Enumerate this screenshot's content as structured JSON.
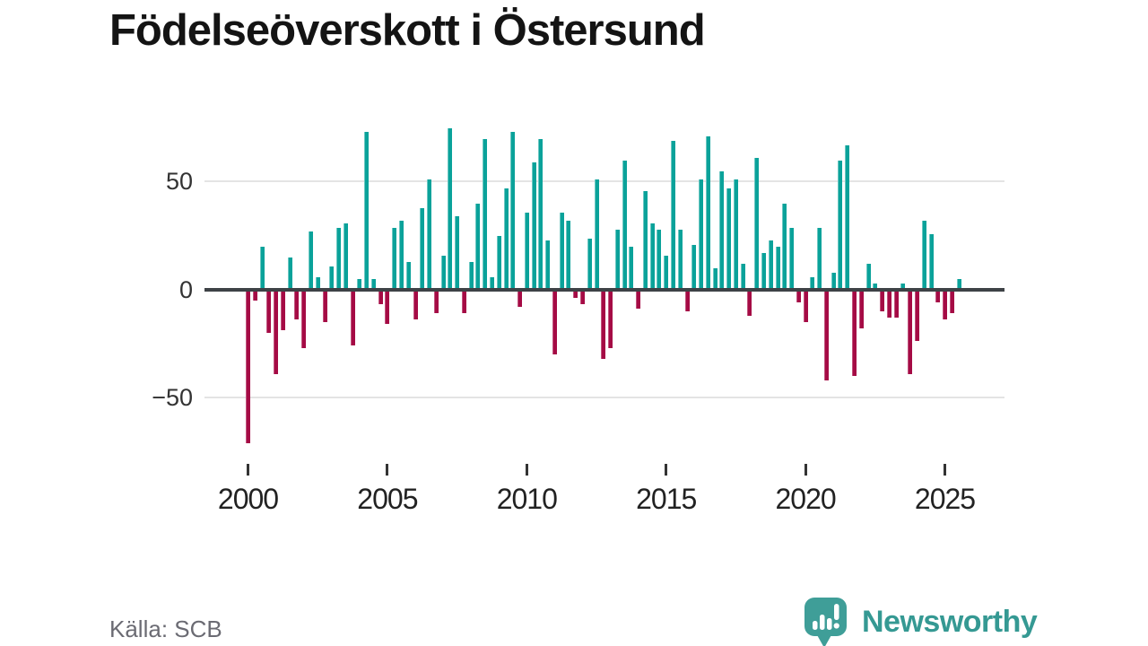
{
  "title": "Födelseöverskott i Östersund",
  "source": {
    "text": "Källa: SCB"
  },
  "brand": {
    "name": "Newsworthy",
    "logo_icon": "speech-bubble-bar-chart-icon",
    "color": "#359993"
  },
  "colors": {
    "positive_bar": "#0aa29a",
    "negative_bar": "#a50b45",
    "axis_line": "#3e4246",
    "gridline": "#e4e4e4",
    "axis_label": "#333333",
    "title_text": "#141414",
    "source_text": "#6b6b73"
  },
  "chart_data": {
    "type": "bar",
    "title": "Födelseöverskott i Östersund",
    "xlabel": "",
    "ylabel": "",
    "frequency": "quarterly",
    "start_year": 2000,
    "start_quarter": 1,
    "end_year": 2025,
    "end_quarter": 3,
    "values": [
      -70,
      -4,
      19,
      -19,
      -38,
      -18,
      14,
      -13,
      -26,
      26,
      5,
      -14,
      10,
      28,
      30,
      -25,
      4,
      72,
      4,
      -6,
      -15,
      28,
      31,
      12,
      -13,
      37,
      50,
      -10,
      15,
      74,
      33,
      -10,
      12,
      39,
      69,
      5,
      24,
      46,
      72,
      -7,
      35,
      58,
      69,
      22,
      -29,
      35,
      31,
      -3,
      -6,
      23,
      50,
      -31,
      -26,
      27,
      59,
      19,
      -8,
      45,
      30,
      27,
      15,
      68,
      27,
      -9,
      20,
      50,
      70,
      9,
      54,
      46,
      50,
      11,
      -11,
      60,
      16,
      22,
      19,
      39,
      28,
      -5,
      -14,
      5,
      28,
      -41,
      7,
      59,
      66,
      -39,
      -17,
      11,
      2,
      -9,
      -12,
      -12,
      2,
      -38,
      -23,
      31,
      25,
      -5,
      -13,
      -10,
      4
    ],
    "positive_color": "#0aa29a",
    "negative_color": "#a50b45",
    "x_axis": {
      "tick_labels": [
        "2000",
        "2005",
        "2010",
        "2015",
        "2020",
        "2025"
      ],
      "ticks_every_n_bars": 20
    },
    "y_axis": {
      "tick_labels": [
        "50",
        "0",
        "−50"
      ],
      "tick_values": [
        50,
        0,
        -50
      ],
      "ylim": [
        -75,
        80
      ]
    },
    "grid": "horizontal",
    "legend": "none"
  }
}
